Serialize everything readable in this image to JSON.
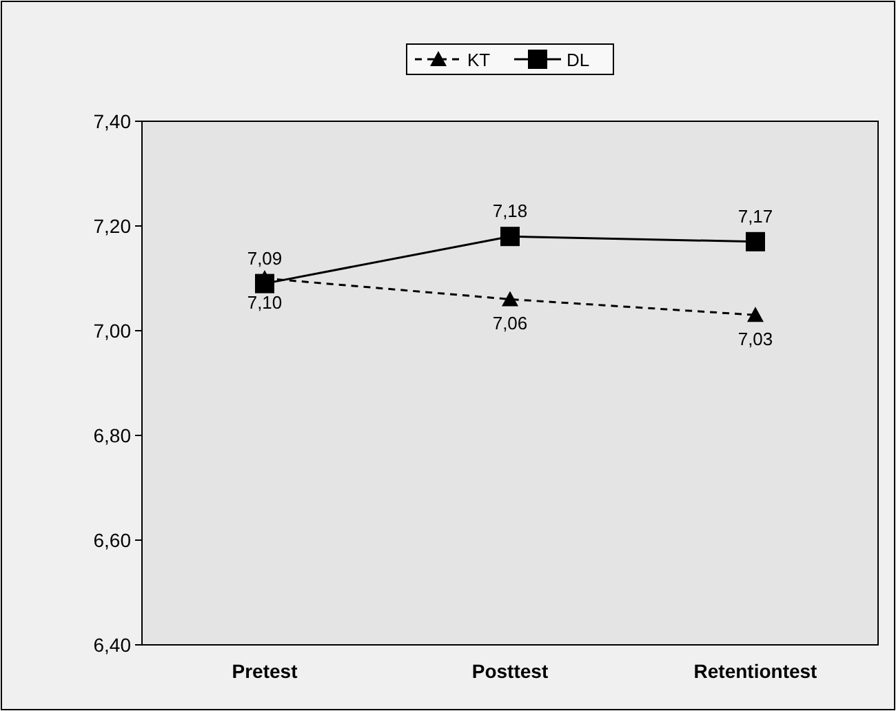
{
  "chart_data": {
    "type": "line",
    "categories": [
      "Pretest",
      "Posttest",
      "Retentiontest"
    ],
    "series": [
      {
        "name": "KT",
        "color": "#000000",
        "values": [
          7.1,
          7.06,
          7.03
        ],
        "value_labels": [
          "7,10",
          "7,06",
          "7,03"
        ],
        "marker": "triangle",
        "line_style": "dashed"
      },
      {
        "name": "DL",
        "color": "#000000",
        "values": [
          7.09,
          7.18,
          7.17
        ],
        "value_labels": [
          "7,09",
          "7,18",
          "7,17"
        ],
        "marker": "square",
        "line_style": "solid"
      }
    ],
    "ylim": [
      6.4,
      7.4
    ],
    "yticks": [
      {
        "value": 6.4,
        "label": "6,40"
      },
      {
        "value": 6.6,
        "label": "6,60"
      },
      {
        "value": 6.8,
        "label": "6,80"
      },
      {
        "value": 7.0,
        "label": "7,00"
      },
      {
        "value": 7.2,
        "label": "7,20"
      },
      {
        "value": 7.4,
        "label": "7,40"
      }
    ],
    "legend": "top",
    "grid": false
  }
}
